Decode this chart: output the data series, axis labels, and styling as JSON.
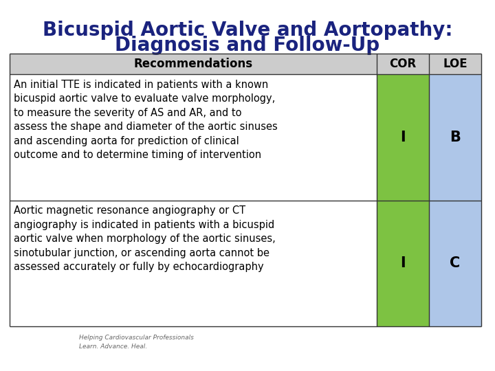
{
  "title_line1": "Bicuspid Aortic Valve and Aortopathy:",
  "title_line2": "Diagnosis and Follow-Up",
  "title_color": "#1a237e",
  "title_fontsize": 20,
  "background_color": "#ffffff",
  "header": [
    "Recommendations",
    "COR",
    "LOE"
  ],
  "header_bg": "#cccccc",
  "header_fontsize": 12,
  "rows": [
    {
      "recommendation": "An initial TTE is indicated in patients with a known\nbicuspid aortic valve to evaluate valve morphology,\nto measure the severity of AS and AR, and to\nassess the shape and diameter of the aortic sinuses\nand ascending aorta for prediction of clinical\noutcome and to determine timing of intervention",
      "cor": "I",
      "loe": "B"
    },
    {
      "recommendation": "Aortic magnetic resonance angiography or CT\nangiography is indicated in patients with a bicuspid\naortic valve when morphology of the aortic sinuses,\nsinotubular junction, or ascending aorta cannot be\nassessed accurately or fully by echocardiography",
      "cor": "I",
      "loe": "C"
    }
  ],
  "cor_color": "#7dc242",
  "loe_color": "#aec6e8",
  "border_color": "#333333",
  "cell_text_fontsize": 10.5,
  "cor_loe_fontsize": 15,
  "footer_text": "Helping Cardiovascular Professionals\nLearn. Advance. Heal."
}
